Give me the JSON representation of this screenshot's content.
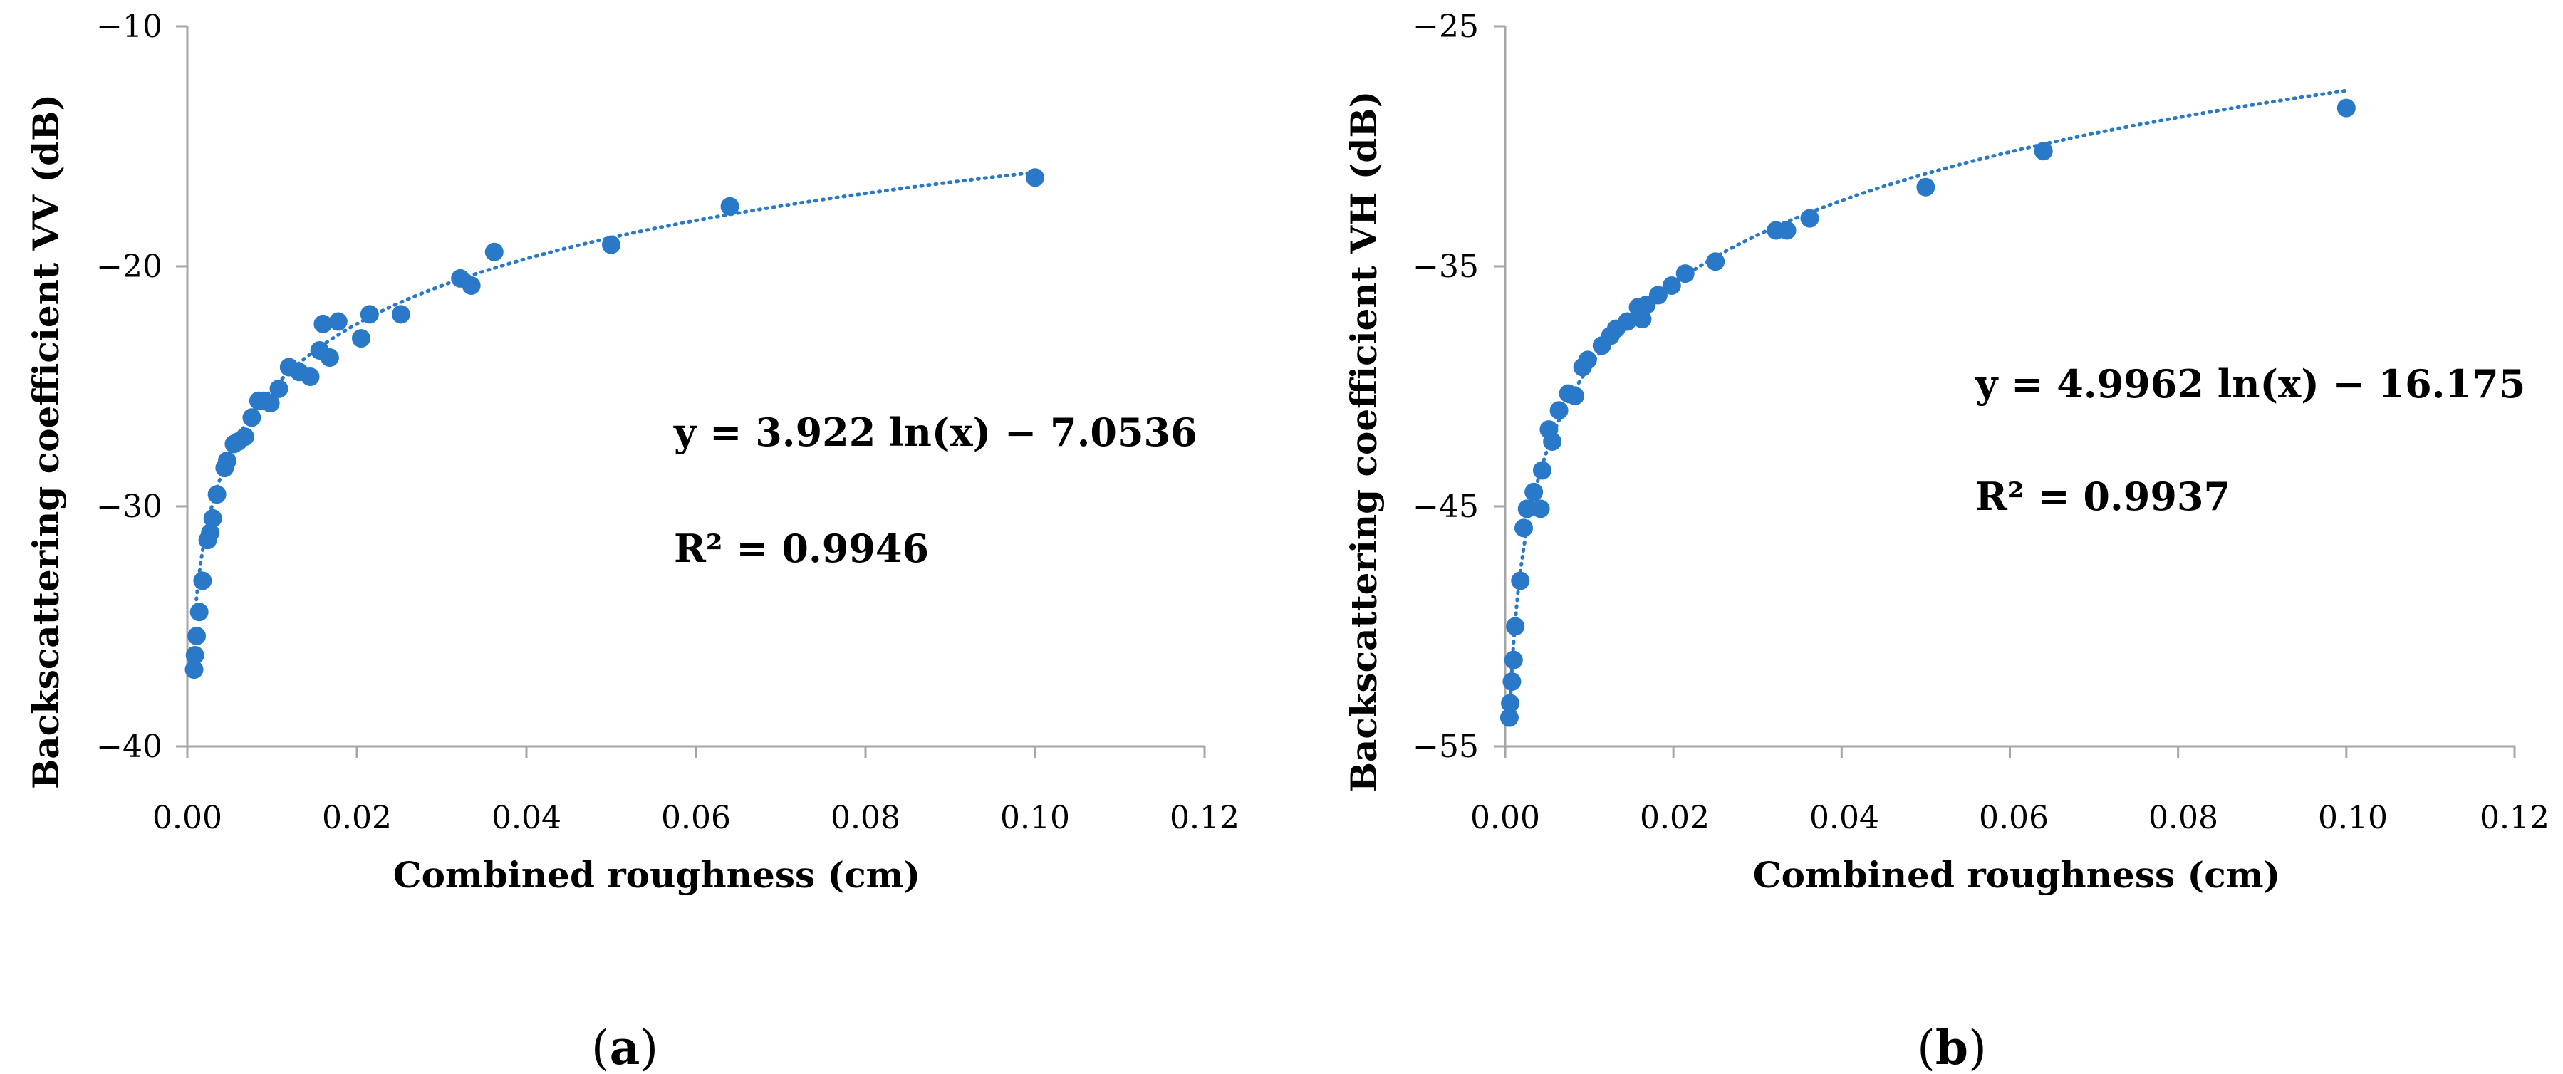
{
  "chart_data": [
    {
      "type": "scatter",
      "panel": "a",
      "xlabel": "Combined roughness (cm)",
      "ylabel": "Backscattering coefficient VV (dB)",
      "xlim": [
        0,
        0.12
      ],
      "ylim": [
        -40,
        -10
      ],
      "xticks": [
        0,
        0.02,
        0.04,
        0.06,
        0.08,
        0.1,
        0.12
      ],
      "yticks": [
        -40,
        -30,
        -20,
        -10
      ],
      "xtick_labels": [
        "0.00",
        "0.02",
        "0.04",
        "0.06",
        "0.08",
        "0.10",
        "0.12"
      ],
      "ytick_labels": [
        "−40",
        "−30",
        "−20",
        "−10"
      ],
      "equation": "y = 3.922 ln(x) − 7.0536",
      "r2": "R² = 0.9946",
      "fit": {
        "model": "log",
        "a": 3.922,
        "b": -7.0536,
        "x_range": [
          0.00092,
          0.1
        ]
      },
      "x": [
        0.0008,
        0.0009,
        0.0011,
        0.0014,
        0.0018,
        0.0024,
        0.0027,
        0.003,
        0.0035,
        0.0044,
        0.0047,
        0.0055,
        0.006,
        0.0068,
        0.0076,
        0.0084,
        0.009,
        0.0098,
        0.0108,
        0.012,
        0.0132,
        0.0145,
        0.0156,
        0.016,
        0.0168,
        0.0178,
        0.0205,
        0.0215,
        0.0252,
        0.0322,
        0.0335,
        0.0362,
        0.05,
        0.064,
        0.1
      ],
      "y": [
        -36.8,
        -36.2,
        -35.4,
        -34.4,
        -33.1,
        -31.4,
        -31.1,
        -30.5,
        -29.5,
        -28.4,
        -28.1,
        -27.4,
        -27.3,
        -27.1,
        -26.3,
        -25.6,
        -25.6,
        -25.7,
        -25.1,
        -24.2,
        -24.4,
        -24.6,
        -23.5,
        -22.4,
        -23.8,
        -22.3,
        -23.0,
        -22.0,
        -22.0,
        -20.5,
        -20.8,
        -19.4,
        -19.1,
        -17.5,
        -16.3
      ]
    },
    {
      "type": "scatter",
      "panel": "b",
      "xlabel": "Combined roughness (cm)",
      "ylabel": "Backscattering coefficient VH (dB)",
      "xlim": [
        0,
        0.12
      ],
      "ylim": [
        -55,
        -25
      ],
      "xticks": [
        0,
        0.02,
        0.04,
        0.06,
        0.08,
        0.1,
        0.12
      ],
      "yticks": [
        -55,
        -45,
        -35,
        -25
      ],
      "xtick_labels": [
        "0.00",
        "0.02",
        "0.04",
        "0.06",
        "0.08",
        "0.10",
        "0.12"
      ],
      "ytick_labels": [
        "−55",
        "−45",
        "−35",
        "−25"
      ],
      "equation": "y = 4.9962 ln(x) − 16.175",
      "r2": "R² = 0.9937",
      "fit": {
        "model": "log",
        "a": 4.9962,
        "b": -16.175,
        "x_range": [
          0.00066,
          0.1
        ]
      },
      "x": [
        0.0005,
        0.0006,
        0.0008,
        0.001,
        0.0012,
        0.0018,
        0.0022,
        0.0026,
        0.0034,
        0.0042,
        0.0044,
        0.0052,
        0.0056,
        0.0064,
        0.0075,
        0.0083,
        0.0092,
        0.0098,
        0.0115,
        0.0125,
        0.0132,
        0.0145,
        0.0158,
        0.0163,
        0.0168,
        0.0182,
        0.0198,
        0.0214,
        0.025,
        0.0322,
        0.0335,
        0.0362,
        0.05,
        0.064,
        0.1
      ],
      "y": [
        -53.8,
        -53.2,
        -52.3,
        -51.4,
        -50.0,
        -48.1,
        -45.9,
        -45.1,
        -44.4,
        -45.1,
        -43.5,
        -41.8,
        -42.3,
        -41.0,
        -40.3,
        -40.4,
        -39.2,
        -38.9,
        -38.3,
        -37.9,
        -37.6,
        -37.3,
        -36.7,
        -37.2,
        -36.6,
        -36.2,
        -35.8,
        -35.3,
        -34.8,
        -33.5,
        -33.5,
        -33.0,
        -31.7,
        -30.2,
        -28.4
      ]
    }
  ],
  "panels": {
    "a": {
      "label_open": "(",
      "label": "a",
      "label_close": ")"
    },
    "b": {
      "label_open": "(",
      "label": "b",
      "label_close": ")"
    }
  },
  "colors": {
    "marker": "#2a78c8",
    "trend": "#2a78c8",
    "axis": "#a6a6a6"
  }
}
